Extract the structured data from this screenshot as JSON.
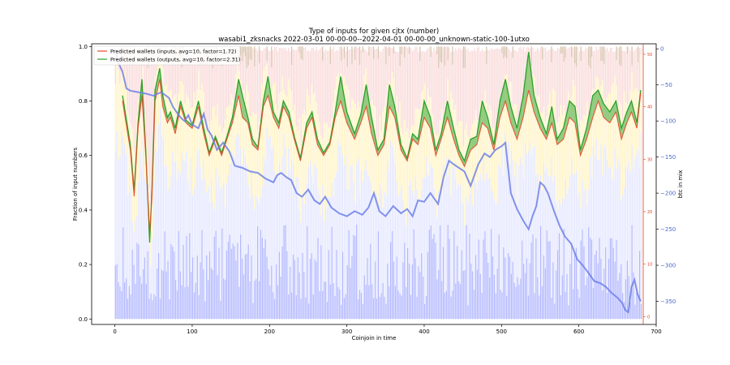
{
  "chart_data": {
    "type": "line",
    "title": "Type of inputs for given cjtx (number)",
    "subtitle": "wasabi1_zksnacks 2022-03-01 00-00-00--2022-04-01 00-00-00_unknown-static-100-1utxo",
    "xlabel": "Coinjoin in time",
    "ylabel": "Fraction of input numbers",
    "y2label": "btc in mix",
    "xlim": [
      -30,
      700
    ],
    "ylim": [
      -0.02,
      1.01
    ],
    "y2lim": [
      -382,
      7
    ],
    "x_ticks": [
      "0",
      "100",
      "200",
      "300",
      "400",
      "500",
      "600",
      "700"
    ],
    "y_ticks": [
      "0.0",
      "0.2",
      "0.4",
      "0.6",
      "0.8",
      "1.0"
    ],
    "y2_ticks": [
      "0",
      "−50",
      "−100",
      "−150",
      "−200",
      "−250",
      "−300",
      "−350"
    ],
    "red_axis_ticks": [
      "50",
      "40",
      "30",
      "20",
      "10",
      "0"
    ],
    "legend_position": "upper-left",
    "grid": false,
    "colors": {
      "inputs_line": "#e8472c",
      "outputs_line": "#2ca02c",
      "overlap_line": "#5a5a1e",
      "btc_line": "#6e80e6",
      "bar_blue": "#aeb4ff",
      "bar_lavender": "#e3e6ff",
      "bar_yellow": "#fff3c2",
      "bar_pink": "#f9d8d8",
      "bar_tan": "#d6c3ad",
      "red_axis": "#e04020",
      "blue_axis": "#4a68c8"
    },
    "series": [
      {
        "name": "Predicted wallets (inputs, avg=10, factor=1.72)",
        "color": "#e8472c",
        "x": [
          10,
          20,
          25,
          30,
          35,
          40,
          45,
          48,
          52,
          58,
          62,
          68,
          72,
          78,
          85,
          92,
          100,
          108,
          115,
          122,
          130,
          138,
          145,
          152,
          160,
          165,
          172,
          178,
          185,
          192,
          198,
          205,
          212,
          218,
          225,
          232,
          240,
          248,
          255,
          262,
          270,
          278,
          285,
          292,
          300,
          310,
          318,
          325,
          332,
          340,
          348,
          355,
          362,
          370,
          378,
          385,
          392,
          400,
          408,
          415,
          422,
          430,
          438,
          445,
          452,
          460,
          468,
          475,
          482,
          490,
          498,
          505,
          512,
          520,
          528,
          535,
          542,
          550,
          558,
          565,
          572,
          580,
          588,
          595,
          602,
          610,
          618,
          625,
          632,
          640,
          648,
          655,
          662,
          668,
          675,
          680
        ],
        "y": [
          0.8,
          0.62,
          0.45,
          0.7,
          0.82,
          0.6,
          0.32,
          0.45,
          0.8,
          0.88,
          0.78,
          0.72,
          0.74,
          0.68,
          0.78,
          0.72,
          0.7,
          0.78,
          0.68,
          0.6,
          0.66,
          0.6,
          0.66,
          0.72,
          0.82,
          0.74,
          0.72,
          0.64,
          0.62,
          0.78,
          0.82,
          0.74,
          0.7,
          0.78,
          0.74,
          0.66,
          0.58,
          0.7,
          0.74,
          0.64,
          0.6,
          0.64,
          0.74,
          0.8,
          0.72,
          0.66,
          0.72,
          0.78,
          0.68,
          0.6,
          0.64,
          0.78,
          0.74,
          0.62,
          0.58,
          0.66,
          0.64,
          0.74,
          0.7,
          0.6,
          0.66,
          0.74,
          0.66,
          0.6,
          0.56,
          0.62,
          0.64,
          0.72,
          0.7,
          0.62,
          0.74,
          0.8,
          0.72,
          0.66,
          0.74,
          0.84,
          0.76,
          0.7,
          0.66,
          0.72,
          0.64,
          0.66,
          0.74,
          0.72,
          0.6,
          0.66,
          0.74,
          0.8,
          0.74,
          0.72,
          0.76,
          0.66,
          0.72,
          0.76,
          0.7,
          0.83
        ]
      },
      {
        "name": "Predicted wallets (outputs, avg=10, factor=2.31)",
        "color": "#2ca02c",
        "x": [
          10,
          20,
          25,
          30,
          35,
          40,
          45,
          48,
          52,
          58,
          62,
          68,
          72,
          78,
          85,
          92,
          100,
          108,
          115,
          122,
          130,
          138,
          145,
          152,
          160,
          165,
          172,
          178,
          185,
          192,
          198,
          205,
          212,
          218,
          225,
          232,
          240,
          248,
          255,
          262,
          270,
          278,
          285,
          292,
          300,
          310,
          318,
          325,
          332,
          340,
          348,
          355,
          362,
          370,
          378,
          385,
          392,
          400,
          408,
          415,
          422,
          430,
          438,
          445,
          452,
          460,
          468,
          475,
          482,
          490,
          498,
          505,
          512,
          520,
          528,
          535,
          542,
          550,
          558,
          565,
          572,
          580,
          588,
          595,
          602,
          610,
          618,
          625,
          632,
          640,
          648,
          655,
          662,
          668,
          675,
          680
        ],
        "y": [
          0.82,
          0.64,
          0.47,
          0.72,
          0.88,
          0.62,
          0.28,
          0.48,
          0.84,
          0.92,
          0.82,
          0.74,
          0.76,
          0.7,
          0.8,
          0.73,
          0.71,
          0.8,
          0.7,
          0.61,
          0.67,
          0.61,
          0.67,
          0.74,
          0.88,
          0.82,
          0.74,
          0.66,
          0.63,
          0.8,
          0.89,
          0.76,
          0.72,
          0.8,
          0.76,
          0.67,
          0.59,
          0.72,
          0.76,
          0.66,
          0.61,
          0.65,
          0.76,
          0.89,
          0.76,
          0.68,
          0.75,
          0.86,
          0.74,
          0.62,
          0.66,
          0.86,
          0.78,
          0.64,
          0.59,
          0.68,
          0.66,
          0.8,
          0.74,
          0.62,
          0.68,
          0.8,
          0.7,
          0.62,
          0.58,
          0.66,
          0.67,
          0.8,
          0.74,
          0.64,
          0.8,
          0.88,
          0.78,
          0.7,
          0.82,
          0.98,
          0.82,
          0.74,
          0.68,
          0.78,
          0.66,
          0.7,
          0.8,
          0.78,
          0.62,
          0.7,
          0.82,
          0.84,
          0.79,
          0.76,
          0.8,
          0.7,
          0.76,
          0.8,
          0.72,
          0.84
        ]
      },
      {
        "name": "",
        "axis": "right",
        "color": "#6e80e6",
        "x": [
          0,
          5,
          10,
          15,
          20,
          30,
          40,
          50,
          60,
          70,
          75,
          80,
          85,
          90,
          95,
          100,
          108,
          115,
          120,
          125,
          132,
          140,
          148,
          155,
          165,
          175,
          185,
          195,
          205,
          210,
          215,
          222,
          228,
          235,
          242,
          250,
          258,
          265,
          272,
          280,
          290,
          300,
          310,
          320,
          328,
          335,
          342,
          350,
          360,
          370,
          378,
          385,
          392,
          400,
          408,
          418,
          425,
          432,
          438,
          445,
          452,
          460,
          470,
          478,
          485,
          492,
          500,
          505,
          512,
          520,
          528,
          535,
          540,
          545,
          550,
          555,
          560,
          568,
          575,
          582,
          590,
          598,
          605,
          612,
          620,
          628,
          635,
          642,
          650,
          656,
          660,
          664,
          668,
          672,
          676,
          680
        ],
        "y": [
          0,
          -20,
          -32,
          -55,
          -58,
          -60,
          -62,
          -65,
          -60,
          -68,
          -80,
          -88,
          -95,
          -100,
          -92,
          -105,
          -110,
          -90,
          -112,
          -120,
          -140,
          -130,
          -142,
          -162,
          -165,
          -170,
          -172,
          -180,
          -185,
          -175,
          -172,
          -178,
          -182,
          -200,
          -205,
          -195,
          -210,
          -215,
          -205,
          -220,
          -228,
          -232,
          -225,
          -230,
          -220,
          -200,
          -225,
          -232,
          -218,
          -228,
          -222,
          -232,
          -210,
          -212,
          -200,
          -215,
          -178,
          -155,
          -160,
          -165,
          -170,
          -190,
          -160,
          -145,
          -150,
          -140,
          -135,
          -130,
          -200,
          -222,
          -238,
          -250,
          -232,
          -218,
          -185,
          -190,
          -200,
          -225,
          -245,
          -260,
          -270,
          -292,
          -300,
          -310,
          -322,
          -325,
          -330,
          -338,
          -345,
          -352,
          -362,
          -365,
          -330,
          -320,
          -340,
          -350
        ]
      }
    ]
  }
}
